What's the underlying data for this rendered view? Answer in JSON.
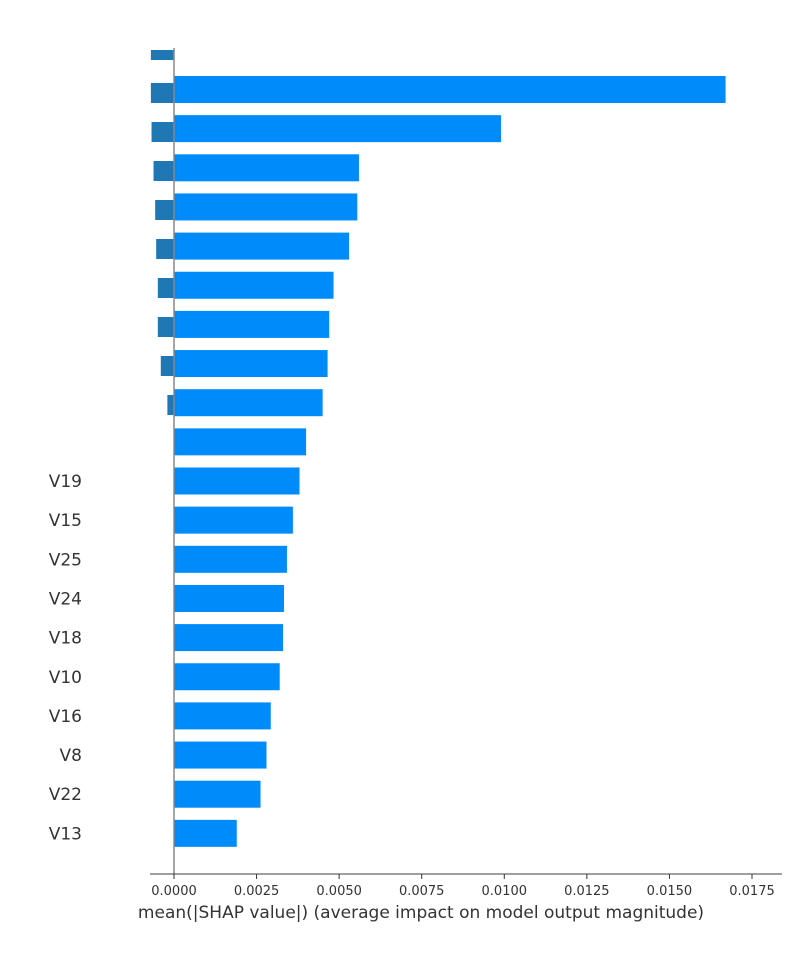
{
  "chart_data": {
    "type": "bar",
    "orientation": "horizontal",
    "title": "",
    "xlabel": "mean(|SHAP value|) (average impact on model output magnitude)",
    "ylabel": "",
    "xlim": [
      -0.0008,
      0.0179
    ],
    "xticks": [
      0.0,
      0.0025,
      0.005,
      0.0075,
      0.01,
      0.0125,
      0.015,
      0.0175
    ],
    "xtick_labels": [
      "0.0000",
      "0.0025",
      "0.0050",
      "0.0075",
      "0.0100",
      "0.0125",
      "0.0150",
      "0.0175"
    ],
    "grid": false,
    "bar_color": "#008bfb",
    "clipped_bar_color": "#1f77b4",
    "axis_color": "#888888",
    "text_color": "#333333",
    "partial_bars": [
      {
        "value": -0.0007
      },
      {
        "value": -0.0007
      },
      {
        "value": -0.00068
      },
      {
        "value": -0.00062
      },
      {
        "value": -0.00057
      },
      {
        "value": -0.00054
      },
      {
        "value": -0.00049
      },
      {
        "value": -0.00049
      },
      {
        "value": -0.0004
      },
      {
        "value": -0.0002
      }
    ],
    "bars": [
      {
        "label": "",
        "value": 0.0167
      },
      {
        "label": "",
        "value": 0.0099
      },
      {
        "label": "",
        "value": 0.0056
      },
      {
        "label": "",
        "value": 0.00555
      },
      {
        "label": "",
        "value": 0.0053
      },
      {
        "label": "",
        "value": 0.00483
      },
      {
        "label": "",
        "value": 0.0047
      },
      {
        "label": "",
        "value": 0.00465
      },
      {
        "label": "",
        "value": 0.0045
      },
      {
        "label": "",
        "value": 0.004
      },
      {
        "label": "V19",
        "value": 0.0038
      },
      {
        "label": "V15",
        "value": 0.0036
      },
      {
        "label": "V25",
        "value": 0.00342
      },
      {
        "label": "V24",
        "value": 0.00333
      },
      {
        "label": "V18",
        "value": 0.0033
      },
      {
        "label": "V10",
        "value": 0.0032
      },
      {
        "label": "V16",
        "value": 0.00293
      },
      {
        "label": "V8",
        "value": 0.0028
      },
      {
        "label": "V22",
        "value": 0.00262
      },
      {
        "label": "V13",
        "value": 0.0019
      }
    ]
  }
}
